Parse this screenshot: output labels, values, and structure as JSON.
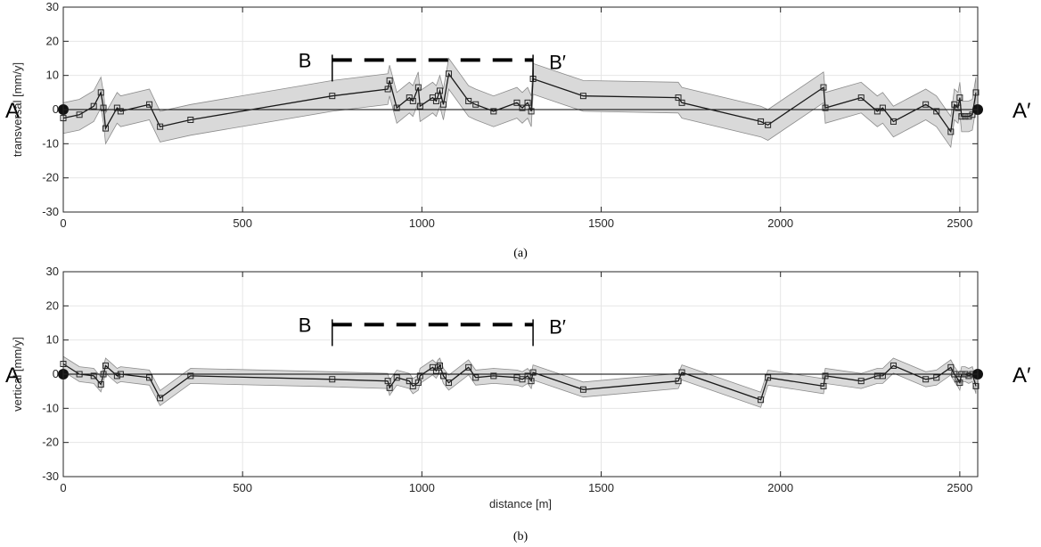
{
  "figure": {
    "end_labels": {
      "left": "A",
      "right": "A′"
    },
    "section_labels": {
      "left": "B",
      "right": "B′"
    },
    "section_range_m": [
      750,
      1310
    ],
    "section_level": 14.5,
    "endpoints_m": [
      0,
      2550
    ]
  },
  "chart_data": [
    {
      "type": "line",
      "panel": "a",
      "caption": "(a)",
      "xlabel": "",
      "ylabel": "transversal [mm/y]",
      "xlim": [
        0,
        2550
      ],
      "ylim": [
        -30,
        30
      ],
      "xticks": [
        0,
        500,
        1000,
        1500,
        2000,
        2500
      ],
      "yticks": [
        -30,
        -20,
        -10,
        0,
        10,
        20,
        30
      ],
      "grid": true,
      "band_halfwidth": 4.5,
      "series": [
        {
          "x": [
            0,
            45,
            85,
            105,
            112,
            118,
            150,
            160,
            240,
            270,
            355,
            750,
            905,
            910,
            930,
            965,
            975,
            990,
            995,
            1030,
            1040,
            1045,
            1050,
            1060,
            1075,
            1130,
            1150,
            1200,
            1265,
            1280,
            1295,
            1305,
            1310,
            1450,
            1715,
            1725,
            1945,
            1965,
            2120,
            2125,
            2225,
            2270,
            2285,
            2315,
            2405,
            2435,
            2475,
            2485,
            2495,
            2500,
            2505,
            2515,
            2525,
            2535,
            2545
          ],
          "y": [
            -2.5,
            -1.5,
            1,
            5,
            0.5,
            -5.5,
            0.5,
            -0.5,
            1.5,
            -5,
            -3,
            4,
            6,
            8.5,
            0.5,
            3.5,
            2.5,
            6.5,
            1,
            3.5,
            2.5,
            4,
            5.5,
            1.5,
            10.5,
            2.5,
            1.5,
            -0.5,
            2,
            0.5,
            2,
            -0.5,
            9,
            4,
            3.5,
            2,
            -3.5,
            -4.5,
            6.5,
            0.5,
            3.5,
            -0.5,
            0.5,
            -3.5,
            1.5,
            -0.5,
            -6.5,
            1.5,
            0.5,
            3.5,
            -2,
            -2,
            -2,
            -1.5,
            5
          ]
        }
      ]
    },
    {
      "type": "line",
      "panel": "b",
      "caption": "(b)",
      "xlabel": "distance [m]",
      "ylabel": "vertical [mm/y]",
      "xlim": [
        0,
        2550
      ],
      "ylim": [
        -30,
        30
      ],
      "xticks": [
        0,
        500,
        1000,
        1500,
        2000,
        2500
      ],
      "yticks": [
        -30,
        -20,
        -10,
        0,
        10,
        20,
        30
      ],
      "grid": true,
      "band_halfwidth": 2.2,
      "series": [
        {
          "x": [
            0,
            45,
            85,
            105,
            112,
            118,
            150,
            160,
            240,
            270,
            355,
            750,
            905,
            910,
            930,
            965,
            975,
            990,
            995,
            1030,
            1040,
            1045,
            1050,
            1060,
            1075,
            1130,
            1150,
            1200,
            1265,
            1280,
            1295,
            1305,
            1310,
            1450,
            1715,
            1725,
            1945,
            1965,
            2120,
            2125,
            2225,
            2270,
            2285,
            2315,
            2405,
            2435,
            2475,
            2485,
            2495,
            2500,
            2505,
            2515,
            2525,
            2535,
            2545
          ],
          "y": [
            3,
            0,
            -0.5,
            -3,
            0,
            2.5,
            -0.5,
            0,
            -1,
            -7,
            -0.5,
            -1.5,
            -2,
            -4,
            -1,
            -2,
            -3.5,
            -2.5,
            -0.5,
            2,
            1,
            2,
            2.5,
            -0.5,
            -2.5,
            2,
            -1,
            -0.5,
            -1,
            -1.5,
            -0.5,
            -2,
            0.5,
            -4.5,
            -2,
            0.5,
            -7.5,
            -1,
            -3.5,
            -0.5,
            -2,
            -0.5,
            -0.5,
            2.5,
            -1.5,
            -1,
            2,
            0,
            -1.5,
            -2.5,
            0,
            0,
            -0.5,
            0,
            -3.5
          ]
        }
      ]
    }
  ]
}
